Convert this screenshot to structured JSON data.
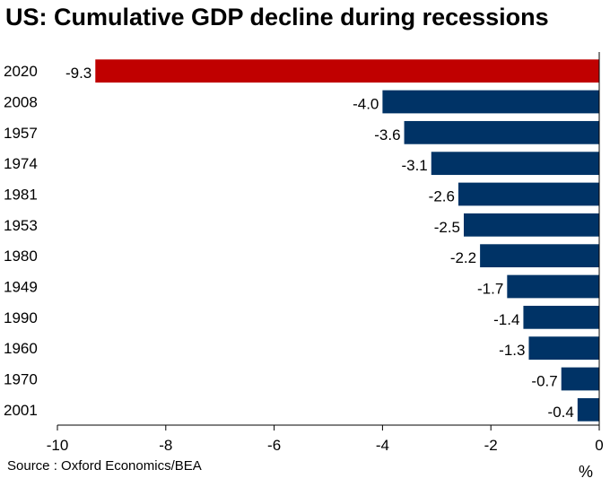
{
  "title": "US: Cumulative GDP decline during recessions",
  "source": "Source : Oxford Economics/BEA",
  "unit": "%",
  "colors": {
    "highlight": "#c00000",
    "bar": "#003366",
    "axis": "#000000"
  },
  "chart_data": {
    "type": "bar",
    "orientation": "horizontal",
    "categories": [
      "2020",
      "2008",
      "1957",
      "1974",
      "1981",
      "1953",
      "1980",
      "1949",
      "1990",
      "1960",
      "1970",
      "2001"
    ],
    "values": [
      -9.3,
      -4.0,
      -3.6,
      -3.1,
      -2.6,
      -2.5,
      -2.2,
      -1.7,
      -1.4,
      -1.3,
      -0.7,
      -0.4
    ],
    "value_labels": [
      "-9.3",
      "-4.0",
      "-3.6",
      "-3.1",
      "-2.6",
      "-2.5",
      "-2.2",
      "-1.7",
      "-1.4",
      "-1.3",
      "-0.7",
      "-0.4"
    ],
    "highlight_category": "2020",
    "xlim": [
      -10,
      0
    ],
    "xticks": [
      -10,
      -8,
      -6,
      -4,
      -2,
      0
    ],
    "xtick_labels": [
      "-10",
      "-8",
      "-6",
      "-4",
      "-2",
      "0"
    ],
    "xlabel": "%",
    "ylabel": "",
    "grid": false,
    "legend": "none"
  }
}
